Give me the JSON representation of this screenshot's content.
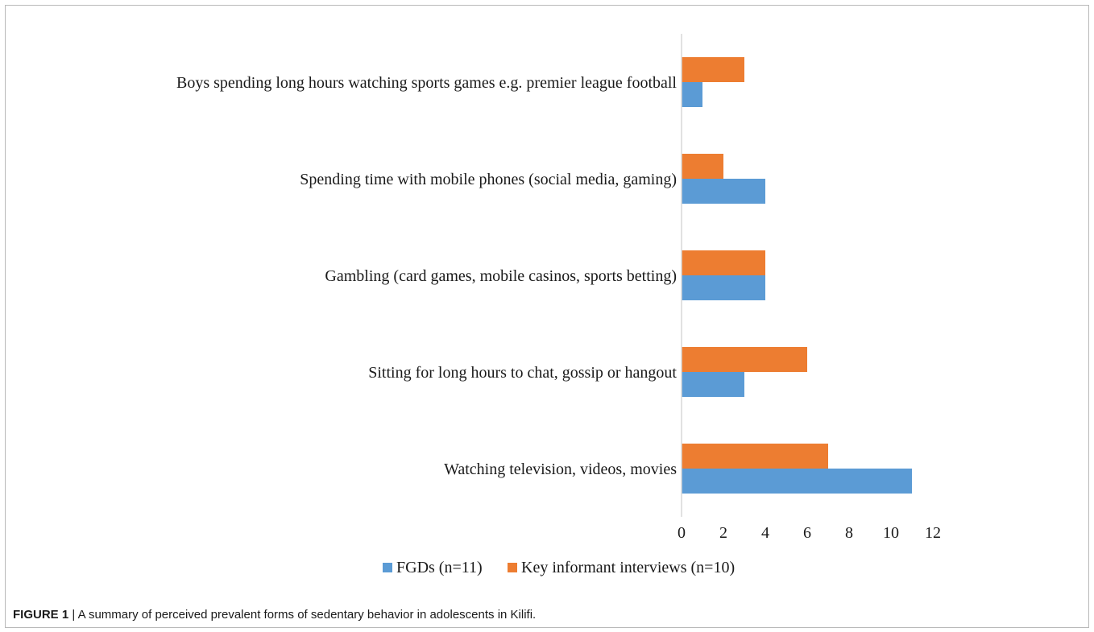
{
  "caption": {
    "label": "FIGURE 1",
    "separator": " | ",
    "text": "A summary of perceived prevalent forms of sedentary behavior in adolescents in Kilifi."
  },
  "chart_data": {
    "type": "bar",
    "orientation": "horizontal",
    "categories": [
      "Watching television, videos, movies",
      "Sitting for long hours to chat, gossip or hangout",
      "Gambling (card games, mobile casinos, sports betting)",
      "Spending time with mobile phones (social media, gaming)",
      "Boys spending long hours watching sports games e.g. premier league football"
    ],
    "series": [
      {
        "name": "FGDs (n=11)",
        "color": "#5b9bd5",
        "values": [
          11,
          3,
          4,
          4,
          1
        ]
      },
      {
        "name": "Key informant interviews (n=10)",
        "color": "#ed7d31",
        "values": [
          7,
          6,
          4,
          2,
          3
        ]
      }
    ],
    "xticks": [
      "0",
      "2",
      "4",
      "6",
      "8",
      "10",
      "12"
    ],
    "xlim": [
      0,
      12
    ],
    "grid": false,
    "legend_position": "bottom"
  }
}
